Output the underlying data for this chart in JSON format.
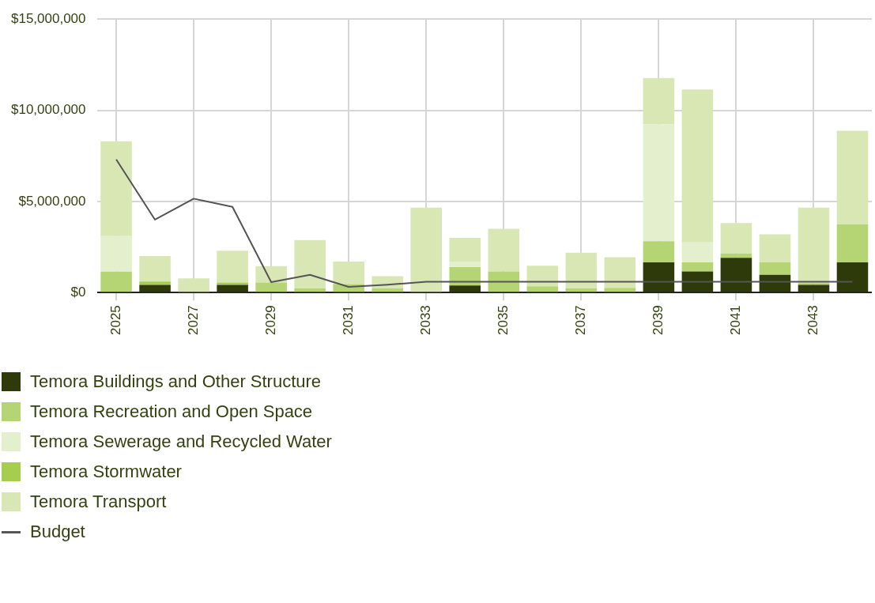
{
  "chart_data": {
    "type": "bar",
    "stacked": true,
    "categories": [
      "2025",
      null,
      "2027",
      null,
      "2029",
      null,
      "2031",
      null,
      "2033",
      null,
      "2035",
      null,
      "2037",
      null,
      "2039",
      null,
      "2041",
      null,
      "2043",
      null
    ],
    "series": [
      {
        "name": "Temora Buildings and Other Structure",
        "color": "#2f3a0a",
        "values": [
          0,
          420000,
          0,
          420000,
          0,
          0,
          0,
          0,
          0,
          390000,
          0,
          0,
          0,
          0,
          1650000,
          1160000,
          1900000,
          970000,
          420000,
          1650000
        ]
      },
      {
        "name": "Temora Recreation and Open Space",
        "color": "#b5d574",
        "values": [
          1150000,
          0,
          0,
          0,
          550000,
          230000,
          460000,
          230000,
          0,
          1000000,
          1160000,
          340000,
          230000,
          260000,
          1170000,
          490000,
          240000,
          680000,
          0,
          2100000
        ]
      },
      {
        "name": "Temora Sewerage and Recycled Water",
        "color": "#e4efcd",
        "values": [
          1950000,
          0,
          0,
          0,
          0,
          0,
          0,
          0,
          0,
          310000,
          0,
          0,
          0,
          0,
          6410000,
          1100000,
          0,
          0,
          0,
          0
        ]
      },
      {
        "name": "Temora Stormwater",
        "color": "#a6cc50",
        "values": [
          0,
          180000,
          0,
          130000,
          0,
          0,
          0,
          0,
          0,
          0,
          0,
          0,
          0,
          0,
          0,
          0,
          0,
          0,
          90000,
          0
        ]
      },
      {
        "name": "Temora Transport",
        "color": "#d9e7b5",
        "values": [
          5200000,
          1400000,
          780000,
          1750000,
          900000,
          2650000,
          1240000,
          670000,
          4660000,
          1300000,
          2340000,
          1130000,
          1960000,
          1680000,
          2540000,
          8390000,
          1670000,
          1540000,
          4150000,
          5120000
        ]
      },
      {
        "name": "Budget",
        "type": "line",
        "color": "#555555",
        "marker": "none",
        "values": [
          7300000,
          4000000,
          5150000,
          4700000,
          570000,
          970000,
          310000,
          430000,
          590000,
          590000,
          590000,
          590000,
          590000,
          590000,
          590000,
          590000,
          590000,
          590000,
          590000,
          590000
        ]
      }
    ],
    "ylim": [
      0,
      15000000
    ],
    "yticks": [
      {
        "value": 0,
        "label": "$0"
      },
      {
        "value": 5000000,
        "label": "$5,000,000"
      },
      {
        "value": 10000000,
        "label": "$10,000,000"
      },
      {
        "value": 15000000,
        "label": "$15,000,000"
      }
    ],
    "grid": true,
    "legend": "bottom"
  }
}
